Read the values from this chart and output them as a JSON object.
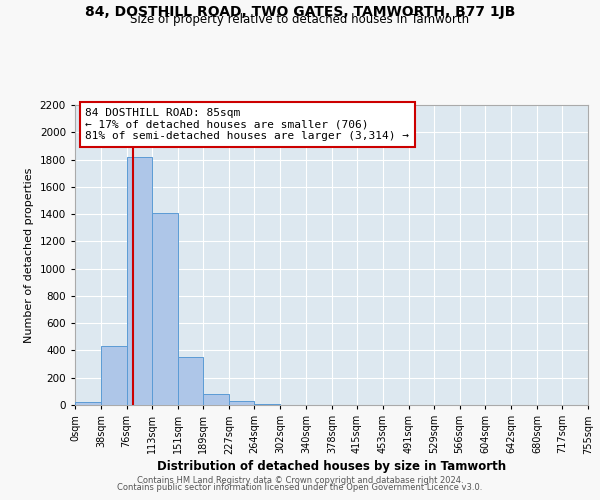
{
  "title": "84, DOSTHILL ROAD, TWO GATES, TAMWORTH, B77 1JB",
  "subtitle": "Size of property relative to detached houses in Tamworth",
  "xlabel": "Distribution of detached houses by size in Tamworth",
  "ylabel": "Number of detached properties",
  "bin_edges": [
    0,
    38,
    76,
    113,
    151,
    189,
    227,
    264,
    302,
    340,
    378,
    415,
    453,
    491,
    529,
    566,
    604,
    642,
    680,
    717,
    755
  ],
  "bin_labels": [
    "0sqm",
    "38sqm",
    "76sqm",
    "113sqm",
    "151sqm",
    "189sqm",
    "227sqm",
    "264sqm",
    "302sqm",
    "340sqm",
    "378sqm",
    "415sqm",
    "453sqm",
    "491sqm",
    "529sqm",
    "566sqm",
    "604sqm",
    "642sqm",
    "680sqm",
    "717sqm",
    "755sqm"
  ],
  "bar_heights": [
    20,
    430,
    1820,
    1410,
    350,
    80,
    30,
    5,
    0,
    0,
    0,
    0,
    0,
    0,
    0,
    0,
    0,
    0,
    0,
    0
  ],
  "bar_color": "#aec6e8",
  "bar_edgecolor": "#5b9bd5",
  "vline_color": "#cc0000",
  "vline_x": 85,
  "annotation_title": "84 DOSTHILL ROAD: 85sqm",
  "annotation_line1": "← 17% of detached houses are smaller (706)",
  "annotation_line2": "81% of semi-detached houses are larger (3,314) →",
  "annotation_box_color": "#ffffff",
  "annotation_box_edgecolor": "#cc0000",
  "ylim": [
    0,
    2200
  ],
  "yticks": [
    0,
    200,
    400,
    600,
    800,
    1000,
    1200,
    1400,
    1600,
    1800,
    2000,
    2200
  ],
  "plot_bg_color": "#dde8f0",
  "fig_bg_color": "#f8f8f8",
  "footer1": "Contains HM Land Registry data © Crown copyright and database right 2024.",
  "footer2": "Contains public sector information licensed under the Open Government Licence v3.0."
}
